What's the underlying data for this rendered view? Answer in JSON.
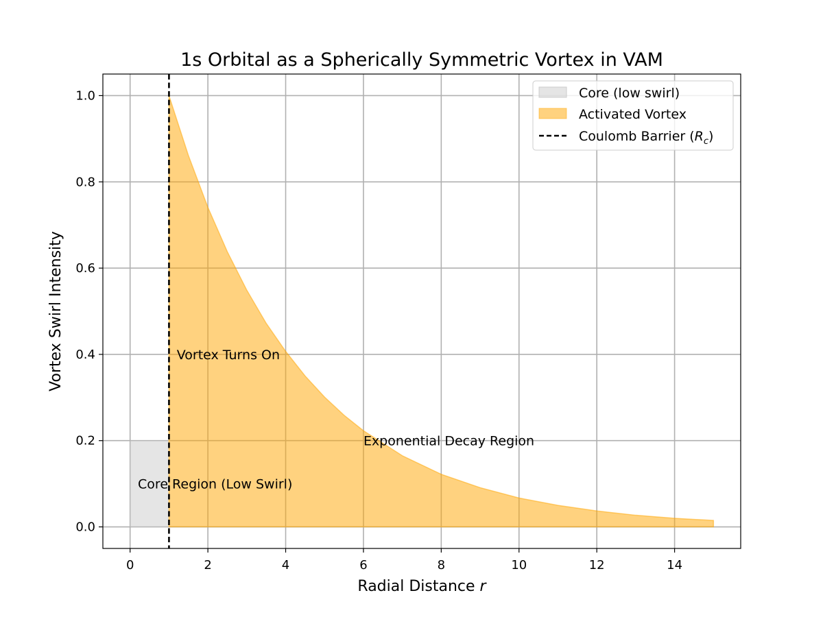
{
  "chart_data": {
    "type": "area",
    "title": "1s Orbital as a Spherically Symmetric Vortex in VAM",
    "xlabel": "Radial Distance",
    "xlabel_var": "r",
    "ylabel": "Vortex Swirl Intensity",
    "xlim": [
      -0.7,
      15.7
    ],
    "ylim": [
      -0.05,
      1.05
    ],
    "xticks": [
      0,
      2,
      4,
      6,
      8,
      10,
      12,
      14
    ],
    "yticks": [
      0.0,
      0.2,
      0.4,
      0.6,
      0.8,
      1.0
    ],
    "ytick_labels": [
      "0.0",
      "0.2",
      "0.4",
      "0.6",
      "0.8",
      "1.0"
    ],
    "grid": true,
    "legend_position": "top-right",
    "series": [
      {
        "name": "Core (low swirl)",
        "kind": "band",
        "color": "#cccccc",
        "x": [
          0,
          1
        ],
        "y": [
          0.2,
          0.2
        ]
      },
      {
        "name": "Activated Vortex",
        "kind": "area",
        "color": "#ffa500",
        "x": [
          1,
          1.5,
          2,
          2.5,
          3,
          3.5,
          4,
          4.5,
          5,
          5.5,
          6,
          7,
          8,
          9,
          10,
          11,
          12,
          13,
          14,
          15
        ],
        "y": [
          1.0,
          0.861,
          0.741,
          0.638,
          0.549,
          0.472,
          0.407,
          0.35,
          0.301,
          0.259,
          0.223,
          0.165,
          0.122,
          0.091,
          0.067,
          0.05,
          0.037,
          0.027,
          0.02,
          0.015
        ]
      },
      {
        "name": "Coulomb Barrier",
        "name_sym": "R",
        "name_sub": "c",
        "kind": "vline",
        "color": "#000000",
        "x": 1.0
      }
    ],
    "annotations": [
      {
        "text": "Vortex Turns On",
        "x": 1.2,
        "y": 0.4
      },
      {
        "text": "Exponential Decay Region",
        "x": 6.0,
        "y": 0.2
      },
      {
        "text": "Core Region (Low Swirl)",
        "x": 0.2,
        "y": 0.1
      }
    ]
  }
}
